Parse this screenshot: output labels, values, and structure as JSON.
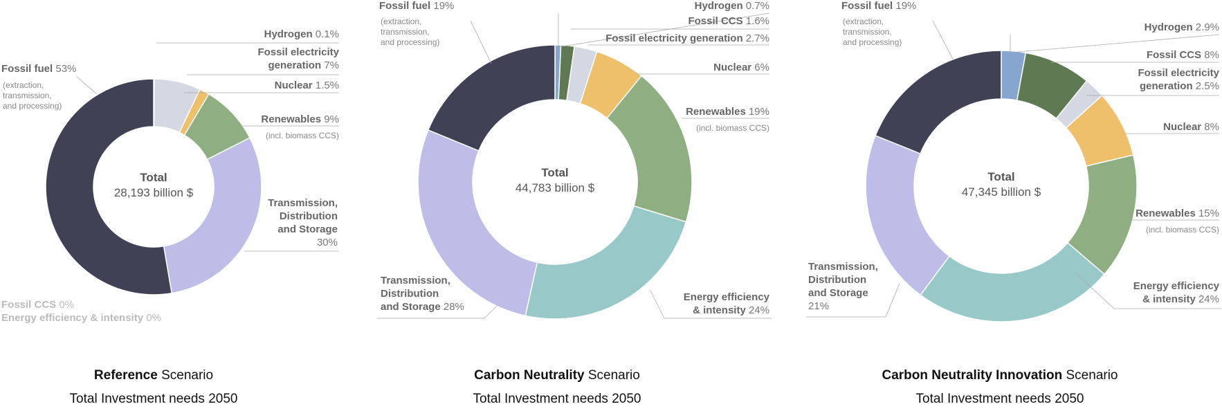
{
  "chart_data": [
    {
      "type": "pie",
      "caption": {
        "bold": "Reference",
        "rest": " Scenario",
        "subtitle": "Total Investment needs 2050"
      },
      "total": {
        "title": "Total",
        "value": "28,193 billion $"
      },
      "slices": [
        {
          "label": "Hydrogen",
          "value": 0.1,
          "value_text": "0.1%",
          "color": "#86a6cf"
        },
        {
          "label": "Fossil electricity generation",
          "value": 7,
          "value_text": "7%",
          "color": "#d4d8e2"
        },
        {
          "label": "Nuclear",
          "value": 1.5,
          "value_text": "1.5%",
          "color": "#eec06c"
        },
        {
          "label": "Renewables",
          "value": 9,
          "value_text": "9%",
          "note": "(incl. biomass CCS)",
          "color": "#8fae81"
        },
        {
          "label": "Transmission, Distribution and Storage",
          "value": 30,
          "value_text": "30%",
          "color": "#bebde8"
        },
        {
          "label": "Fossil fuel",
          "value": 53,
          "value_text": "53%",
          "note": "(extraction, transmission, and processing)",
          "color": "#414156"
        }
      ],
      "zero_items": [
        {
          "label": "Fossil CCS",
          "value_text": "0%"
        },
        {
          "label": "Energy efficiency & intensity",
          "value_text": "0%"
        }
      ]
    },
    {
      "type": "pie",
      "caption": {
        "bold": "Carbon Neutrality",
        "rest": " Scenario",
        "subtitle": "Total Investment needs 2050"
      },
      "total": {
        "title": "Total",
        "value": "44,783 billion $"
      },
      "slices": [
        {
          "label": "Hydrogen",
          "value": 0.7,
          "value_text": "0.7%",
          "color": "#86a6cf"
        },
        {
          "label": "Fossil CCS",
          "value": 1.6,
          "value_text": "1.6%",
          "color": "#5f7a52"
        },
        {
          "label": "Fossil electricity generation",
          "value": 2.7,
          "value_text": "2.7%",
          "color": "#d4d8e2"
        },
        {
          "label": "Nuclear",
          "value": 6,
          "value_text": "6%",
          "color": "#eec06c"
        },
        {
          "label": "Renewables",
          "value": 19,
          "value_text": "19%",
          "note": "(incl. biomass CCS)",
          "color": "#8fae81"
        },
        {
          "label": "Energy efficiency & intensity",
          "value": 24,
          "value_text": "24%",
          "color": "#98c9c8"
        },
        {
          "label": "Transmission, Distribution and Storage",
          "value": 28,
          "value_text": "28%",
          "color": "#bebde8"
        },
        {
          "label": "Fossil fuel",
          "value": 19,
          "value_text": "19%",
          "note": "(extraction, transmission, and processing)",
          "color": "#414156"
        }
      ]
    },
    {
      "type": "pie",
      "caption": {
        "bold": "Carbon Neutrality Innovation",
        "rest": " Scenario",
        "subtitle": "Total Investment needs 2050"
      },
      "total": {
        "title": "Total",
        "value": "47,345 billion $"
      },
      "slices": [
        {
          "label": "Hydrogen",
          "value": 2.9,
          "value_text": "2.9%",
          "color": "#86a6cf"
        },
        {
          "label": "Fossil CCS",
          "value": 8,
          "value_text": "8%",
          "color": "#5f7a52"
        },
        {
          "label": "Fossil electricity generation",
          "value": 2.5,
          "value_text": "2.5%",
          "color": "#d4d8e2"
        },
        {
          "label": "Nuclear",
          "value": 8,
          "value_text": "8%",
          "color": "#eec06c"
        },
        {
          "label": "Renewables",
          "value": 15,
          "value_text": "15%",
          "note": "(incl. biomass CCS)",
          "color": "#8fae81"
        },
        {
          "label": "Energy efficiency & intensity",
          "value": 24,
          "value_text": "24%",
          "color": "#98c9c8"
        },
        {
          "label": "Transmission, Distribution and Storage",
          "value": 21,
          "value_text": "21%",
          "color": "#bebde8"
        },
        {
          "label": "Fossil fuel",
          "value": 19,
          "value_text": "19%",
          "note": "(extraction, transmission, and processing)",
          "color": "#414156"
        }
      ]
    }
  ]
}
